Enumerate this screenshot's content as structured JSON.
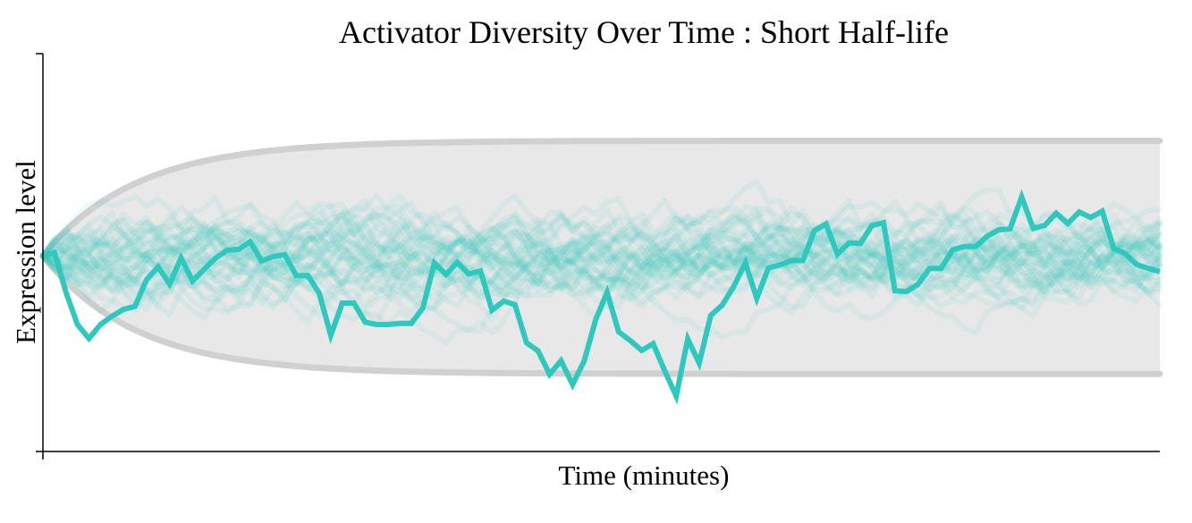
{
  "chart_data": {
    "type": "line",
    "title": "Activator Diversity Over Time : Short Half-life",
    "xlabel": "Time (minutes)",
    "ylabel": "Expression level",
    "ylim": [
      0,
      1
    ],
    "x_range": [
      0,
      1
    ],
    "grid": false,
    "legend": "none",
    "colors": {
      "trace": "#2ec9be",
      "background_trace": "#2ec9be",
      "envelope_fill": "#e8e8e8",
      "envelope_line": "#d0d0d0"
    },
    "background_traces": {
      "count": 40,
      "opacity": 0.09,
      "note_seed": 17
    },
    "envelope": {
      "center": 0.492,
      "upper_asymptote": 0.781,
      "lower_asymptote": 0.195,
      "rise_time_fraction": 0.25
    },
    "series": [
      {
        "values": [
          0.492,
          0.5,
          0.4,
          0.319,
          0.284,
          0.319,
          0.34,
          0.357,
          0.365,
          0.432,
          0.464,
          0.421,
          0.486,
          0.429,
          0.458,
          0.486,
          0.506,
          0.508,
          0.527,
          0.479,
          0.49,
          0.495,
          0.442,
          0.442,
          0.398,
          0.292,
          0.373,
          0.373,
          0.325,
          0.319,
          0.319,
          0.322,
          0.322,
          0.361,
          0.474,
          0.445,
          0.475,
          0.446,
          0.454,
          0.355,
          0.378,
          0.369,
          0.273,
          0.253,
          0.194,
          0.228,
          0.168,
          0.227,
          0.331,
          0.4,
          0.301,
          0.279,
          0.254,
          0.271,
          0.203,
          0.139,
          0.283,
          0.222,
          0.342,
          0.368,
          0.415,
          0.474,
          0.385,
          0.461,
          0.469,
          0.48,
          0.48,
          0.555,
          0.572,
          0.496,
          0.524,
          0.523,
          0.568,
          0.575,
          0.404,
          0.402,
          0.42,
          0.46,
          0.46,
          0.507,
          0.515,
          0.515,
          0.541,
          0.557,
          0.56,
          0.64,
          0.561,
          0.568,
          0.599,
          0.573,
          0.602,
          0.588,
          0.604,
          0.51,
          0.497,
          0.47,
          0.46,
          0.452
        ]
      }
    ]
  }
}
